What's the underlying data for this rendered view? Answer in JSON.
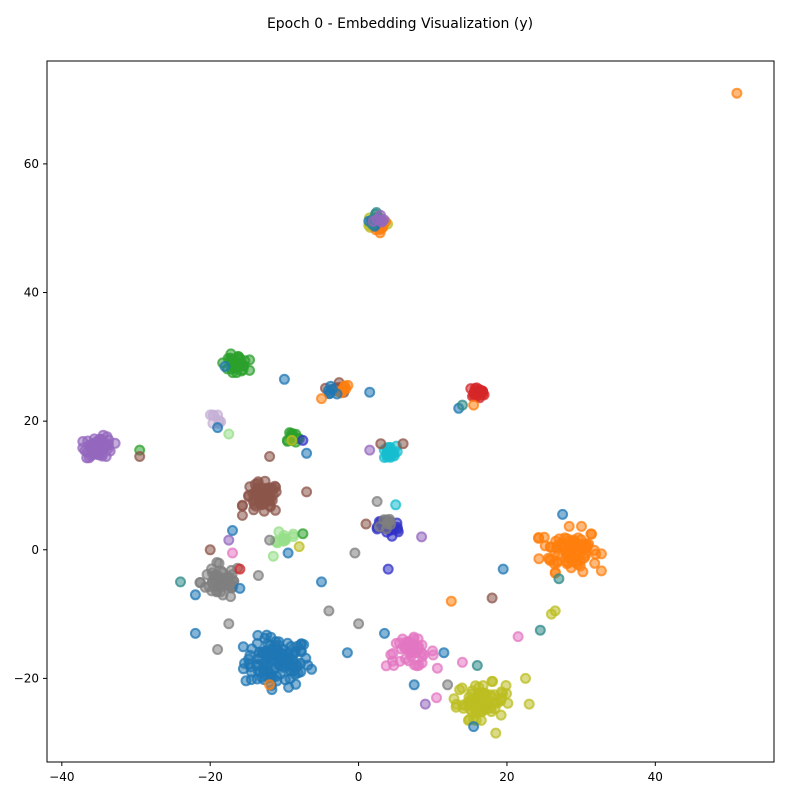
{
  "chart_data": {
    "type": "scatter",
    "title": "Epoch 0 - Embedding Visualization (y)",
    "xlabel": "",
    "ylabel": "",
    "xlim": [
      -42,
      56
    ],
    "ylim": [
      -33,
      76
    ],
    "xticks": [
      -40,
      -20,
      0,
      20,
      40
    ],
    "yticks": [
      -20,
      0,
      20,
      40,
      60
    ],
    "grid": false,
    "legend": "none",
    "colors": {
      "blue": "#1f77b4",
      "orange": "#ff7f0e",
      "green": "#2ca02c",
      "red": "#d62728",
      "purple": "#9467bd",
      "brown": "#8c564b",
      "pink": "#e377c2",
      "gray": "#7f7f7f",
      "olive": "#bcbd22",
      "cyan": "#17becf",
      "lavender": "#c5b0d5",
      "lightgreen": "#98df8a",
      "darkblue": "#3232c8",
      "teal": "#2f8a8a"
    },
    "clusters": [
      {
        "color": "blue",
        "center": [
          -11,
          -17.5
        ],
        "spread": [
          4,
          3.5
        ],
        "count": 120
      },
      {
        "color": "orange",
        "center": [
          28.5,
          0
        ],
        "spread": [
          3.5,
          3
        ],
        "count": 90
      },
      {
        "color": "olive",
        "center": [
          16.5,
          -23.5
        ],
        "spread": [
          3,
          2.5
        ],
        "count": 80
      },
      {
        "color": "pink",
        "center": [
          7,
          -16
        ],
        "spread": [
          3,
          2
        ],
        "count": 45
      },
      {
        "color": "gray",
        "center": [
          -18.5,
          -5
        ],
        "spread": [
          2.5,
          2.5
        ],
        "count": 55
      },
      {
        "color": "brown",
        "center": [
          -13,
          8
        ],
        "spread": [
          2.2,
          2.2
        ],
        "count": 60
      },
      {
        "color": "purple",
        "center": [
          -35,
          16
        ],
        "spread": [
          1.8,
          1.5
        ],
        "count": 55
      },
      {
        "color": "green",
        "center": [
          -16.5,
          29
        ],
        "spread": [
          1.5,
          1.2
        ],
        "count": 35
      },
      {
        "color": "red",
        "center": [
          16,
          24.5
        ],
        "spread": [
          1,
          0.7
        ],
        "count": 25
      },
      {
        "color": "cyan",
        "center": [
          4,
          15
        ],
        "spread": [
          1,
          1
        ],
        "count": 25
      },
      {
        "color": "darkblue",
        "center": [
          4,
          3.5
        ],
        "spread": [
          1.3,
          1.4
        ],
        "count": 35
      },
      {
        "color": "olive",
        "center": [
          2.5,
          51
        ],
        "spread": [
          1.2,
          1
        ],
        "count": 25
      },
      {
        "color": "orange",
        "center": [
          3,
          50.5
        ],
        "spread": [
          1,
          1
        ],
        "count": 10
      },
      {
        "color": "blue",
        "center": [
          2,
          51
        ],
        "spread": [
          1,
          1
        ],
        "count": 8
      },
      {
        "color": "teal",
        "center": [
          2.5,
          51.5
        ],
        "spread": [
          1,
          1
        ],
        "count": 6
      },
      {
        "color": "purple",
        "center": [
          3,
          51
        ],
        "spread": [
          1,
          1
        ],
        "count": 6
      },
      {
        "color": "brown",
        "center": [
          -3,
          25
        ],
        "spread": [
          1.2,
          1
        ],
        "count": 10
      },
      {
        "color": "orange",
        "center": [
          -2.5,
          25
        ],
        "spread": [
          1.2,
          1
        ],
        "count": 8
      },
      {
        "color": "blue",
        "center": [
          -3.5,
          25
        ],
        "spread": [
          1,
          1
        ],
        "count": 6
      },
      {
        "color": "lightgreen",
        "center": [
          -10,
          2
        ],
        "spread": [
          1,
          1
        ],
        "count": 12
      },
      {
        "color": "lavender",
        "center": [
          -19,
          20.5
        ],
        "spread": [
          0.8,
          0.8
        ],
        "count": 8
      },
      {
        "color": "green",
        "center": [
          -9,
          17.5
        ],
        "spread": [
          1,
          1
        ],
        "count": 12
      },
      {
        "color": "gray",
        "center": [
          3.5,
          4
        ],
        "spread": [
          1.2,
          1.2
        ],
        "count": 8
      }
    ],
    "points": [
      {
        "x": 51,
        "y": 71,
        "color": "orange"
      },
      {
        "x": -29.5,
        "y": 15.5,
        "color": "green"
      },
      {
        "x": -29.5,
        "y": 14.5,
        "color": "brown"
      },
      {
        "x": -24,
        "y": -5,
        "color": "teal"
      },
      {
        "x": -22,
        "y": -13,
        "color": "blue"
      },
      {
        "x": -22,
        "y": -7,
        "color": "blue"
      },
      {
        "x": -10,
        "y": 26.5,
        "color": "blue"
      },
      {
        "x": -18,
        "y": 28.5,
        "color": "blue"
      },
      {
        "x": 13.5,
        "y": 22,
        "color": "blue"
      },
      {
        "x": 14,
        "y": 22.5,
        "color": "teal"
      },
      {
        "x": 15.5,
        "y": 22.5,
        "color": "orange"
      },
      {
        "x": 19.5,
        "y": -3,
        "color": "blue"
      },
      {
        "x": 18,
        "y": -7.5,
        "color": "brown"
      },
      {
        "x": 12.5,
        "y": -8,
        "color": "orange"
      },
      {
        "x": 24.5,
        "y": -12.5,
        "color": "teal"
      },
      {
        "x": 26.5,
        "y": -9.5,
        "color": "olive"
      },
      {
        "x": 26,
        "y": -10,
        "color": "olive"
      },
      {
        "x": 27.5,
        "y": 5.5,
        "color": "blue"
      },
      {
        "x": 27,
        "y": -4.5,
        "color": "teal"
      },
      {
        "x": 21.5,
        "y": -13.5,
        "color": "pink"
      },
      {
        "x": 22.5,
        "y": -20,
        "color": "olive"
      },
      {
        "x": 23,
        "y": -24,
        "color": "olive"
      },
      {
        "x": 18.5,
        "y": -28.5,
        "color": "olive"
      },
      {
        "x": 15.5,
        "y": -27.5,
        "color": "blue"
      },
      {
        "x": 9,
        "y": -24,
        "color": "purple"
      },
      {
        "x": 10.5,
        "y": -23,
        "color": "pink"
      },
      {
        "x": 12,
        "y": -21,
        "color": "gray"
      },
      {
        "x": 11.5,
        "y": -16,
        "color": "blue"
      },
      {
        "x": 14,
        "y": -17.5,
        "color": "pink"
      },
      {
        "x": 16,
        "y": -18,
        "color": "teal"
      },
      {
        "x": 7.5,
        "y": -21,
        "color": "blue"
      },
      {
        "x": 3.5,
        "y": -13,
        "color": "blue"
      },
      {
        "x": -1.5,
        "y": -16,
        "color": "blue"
      },
      {
        "x": 0,
        "y": -11.5,
        "color": "gray"
      },
      {
        "x": -4,
        "y": -9.5,
        "color": "gray"
      },
      {
        "x": -5,
        "y": -5,
        "color": "blue"
      },
      {
        "x": -0.5,
        "y": -0.5,
        "color": "gray"
      },
      {
        "x": 1,
        "y": 4,
        "color": "brown"
      },
      {
        "x": 2.5,
        "y": 7.5,
        "color": "gray"
      },
      {
        "x": 5,
        "y": 7,
        "color": "cyan"
      },
      {
        "x": 8.5,
        "y": 2,
        "color": "purple"
      },
      {
        "x": 4,
        "y": -3,
        "color": "darkblue"
      },
      {
        "x": -7,
        "y": 9,
        "color": "brown"
      },
      {
        "x": -7.5,
        "y": 2.5,
        "color": "green"
      },
      {
        "x": -8,
        "y": 0.5,
        "color": "olive"
      },
      {
        "x": -9.5,
        "y": -0.5,
        "color": "blue"
      },
      {
        "x": -11.5,
        "y": -1,
        "color": "lightgreen"
      },
      {
        "x": -12,
        "y": 1.5,
        "color": "gray"
      },
      {
        "x": -17.5,
        "y": 1.5,
        "color": "purple"
      },
      {
        "x": -17,
        "y": 3,
        "color": "blue"
      },
      {
        "x": -20,
        "y": 0,
        "color": "brown"
      },
      {
        "x": -17,
        "y": -0.5,
        "color": "pink"
      },
      {
        "x": -16,
        "y": -3,
        "color": "red"
      },
      {
        "x": -13.5,
        "y": -4,
        "color": "gray"
      },
      {
        "x": -16,
        "y": -6,
        "color": "blue"
      },
      {
        "x": -19,
        "y": -15.5,
        "color": "gray"
      },
      {
        "x": -17.5,
        "y": -11.5,
        "color": "gray"
      },
      {
        "x": -12,
        "y": -21,
        "color": "orange"
      },
      {
        "x": -7,
        "y": 15,
        "color": "blue"
      },
      {
        "x": -12,
        "y": 14.5,
        "color": "brown"
      },
      {
        "x": -7.5,
        "y": 17,
        "color": "darkblue"
      },
      {
        "x": -19,
        "y": 19,
        "color": "blue"
      },
      {
        "x": -17.5,
        "y": 18,
        "color": "lightgreen"
      },
      {
        "x": 1.5,
        "y": 15.5,
        "color": "purple"
      },
      {
        "x": 3,
        "y": 16.5,
        "color": "brown"
      },
      {
        "x": 6,
        "y": 16.5,
        "color": "brown"
      },
      {
        "x": 1.5,
        "y": 24.5,
        "color": "blue"
      },
      {
        "x": -5,
        "y": 23.5,
        "color": "orange"
      },
      {
        "x": -9,
        "y": 17,
        "color": "olive"
      }
    ]
  }
}
